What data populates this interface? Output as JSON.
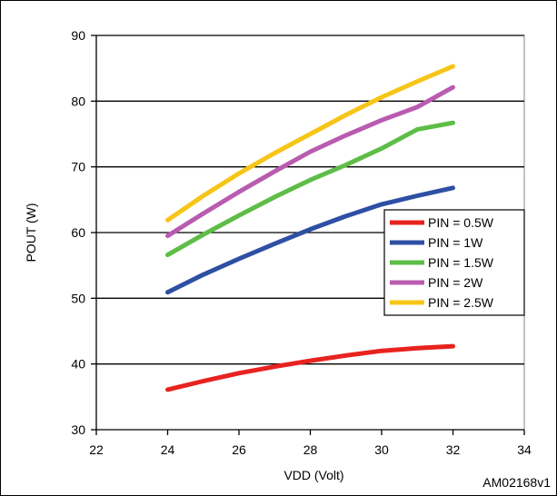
{
  "chart_data": {
    "type": "line",
    "title": "",
    "xlabel": "VDD (Volt)",
    "ylabel": "POUT (W)",
    "xlim": [
      22,
      34
    ],
    "ylim": [
      30,
      90
    ],
    "x_ticks": [
      22,
      24,
      26,
      28,
      30,
      32,
      34
    ],
    "y_ticks": [
      30,
      40,
      50,
      60,
      70,
      80,
      90
    ],
    "grid": "horizontal",
    "legend_position": "right",
    "series": [
      {
        "name": "PIN = 0.5W",
        "color": "#e8231f",
        "x": [
          24,
          25,
          26,
          27,
          28,
          29,
          30,
          31,
          32
        ],
        "y": [
          36.1,
          37.4,
          38.6,
          39.6,
          40.5,
          41.3,
          42.0,
          42.4,
          42.7
        ]
      },
      {
        "name": "PIN = 1W",
        "color": "#2e4fa3",
        "x": [
          24,
          25,
          26,
          27,
          28,
          29,
          30,
          31,
          32
        ],
        "y": [
          50.9,
          53.6,
          56.0,
          58.3,
          60.5,
          62.5,
          64.3,
          65.6,
          66.8
        ]
      },
      {
        "name": "PIN = 1.5W",
        "color": "#5dbd47",
        "x": [
          24,
          25,
          26,
          27,
          28,
          29,
          30,
          31,
          32
        ],
        "y": [
          56.6,
          59.7,
          62.6,
          65.4,
          68.0,
          70.3,
          72.8,
          75.7,
          76.7
        ]
      },
      {
        "name": "PIN = 2W",
        "color": "#b95cb0",
        "x": [
          24,
          25,
          26,
          27,
          28,
          29,
          30,
          31,
          32
        ],
        "y": [
          59.5,
          62.9,
          66.2,
          69.3,
          72.3,
          74.8,
          77.1,
          79.1,
          82.1
        ]
      },
      {
        "name": "PIN = 2.5W",
        "color": "#f6c517",
        "x": [
          24,
          25,
          26,
          27,
          28,
          29,
          30,
          31,
          32
        ],
        "y": [
          61.9,
          65.6,
          69.0,
          72.1,
          75.0,
          77.9,
          80.6,
          83.0,
          85.3
        ]
      }
    ]
  },
  "figure_id": "AM02168v1"
}
